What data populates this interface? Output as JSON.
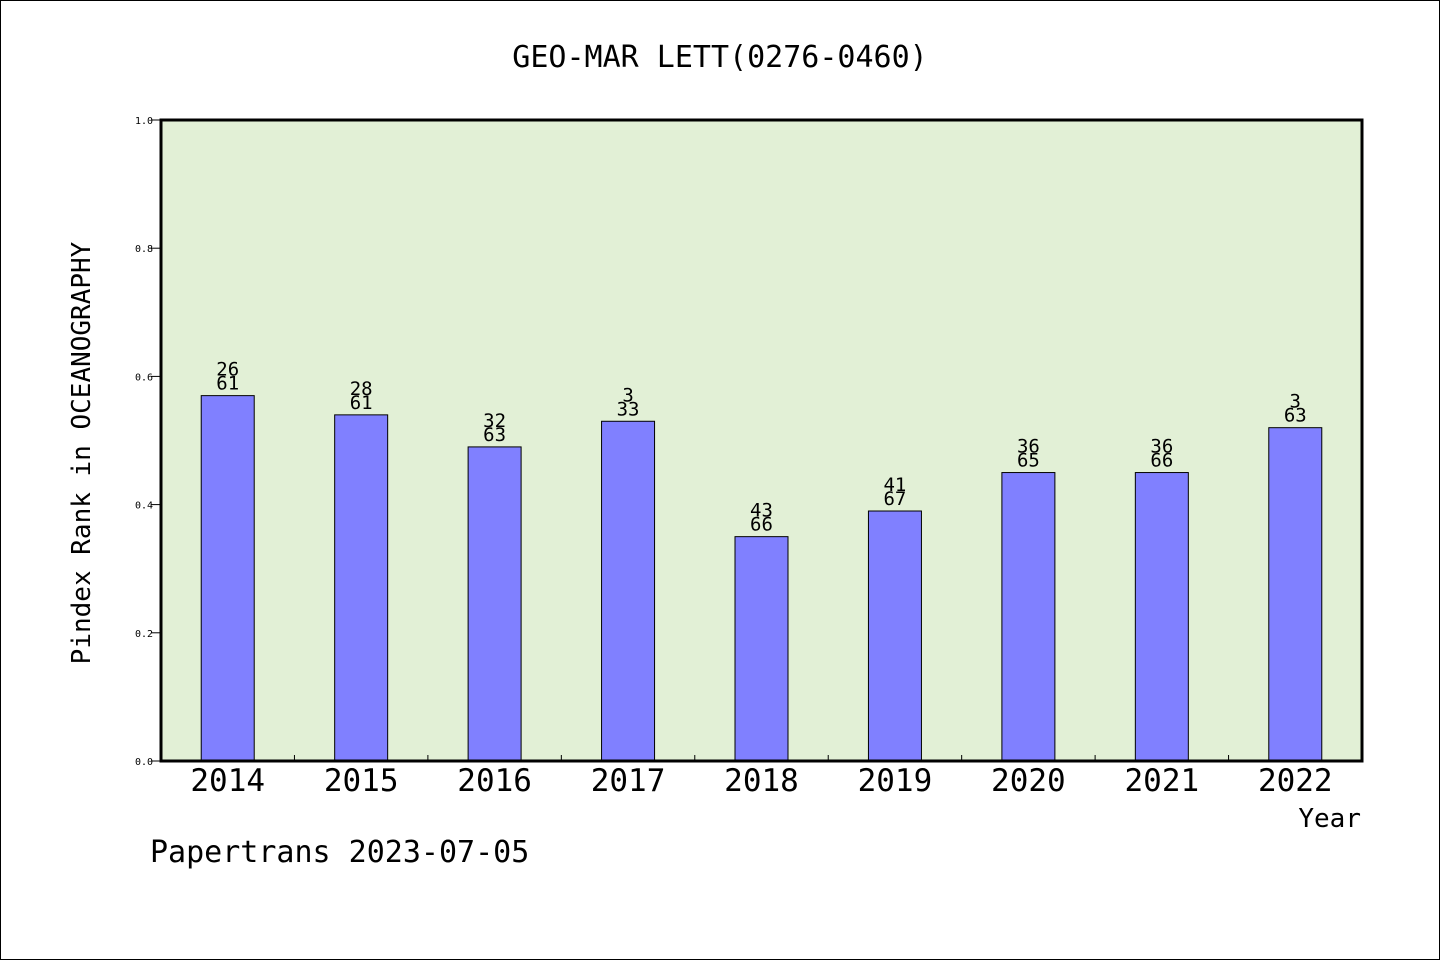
{
  "footer": "Papertrans 2023-07-05",
  "colors": {
    "plot_background": "#e2f0d6",
    "bar_fill": "#8080ff",
    "bar_stroke": "#000000",
    "axis": "#000000"
  },
  "chart_data": {
    "type": "bar",
    "title": "GEO-MAR LETT(0276-0460)",
    "xlabel": "Year",
    "ylabel": "Pindex Rank in OCEANOGRAPHY",
    "ylim": [
      0,
      1.0
    ],
    "yticks": [
      "0.0",
      "0.2",
      "0.4",
      "0.6",
      "0.8",
      "1.0"
    ],
    "grid": false,
    "categories": [
      "2014",
      "2015",
      "2016",
      "2017",
      "2018",
      "2019",
      "2020",
      "2021",
      "2022"
    ],
    "values": [
      0.57,
      0.54,
      0.49,
      0.53,
      0.35,
      0.39,
      0.45,
      0.45,
      0.52
    ],
    "rank": [
      "26",
      "28",
      "32",
      "3",
      "43",
      "41",
      "36",
      "36",
      "3"
    ],
    "total": [
      "61",
      "61",
      "63",
      "33",
      "66",
      "67",
      "65",
      "66",
      "63"
    ]
  }
}
